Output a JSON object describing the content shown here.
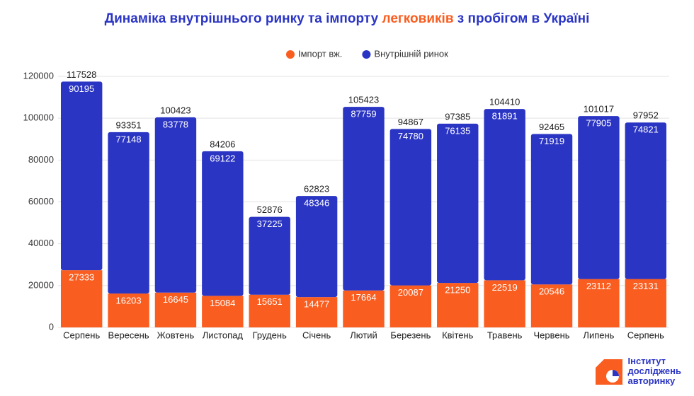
{
  "chart_data": {
    "type": "stacked_bar",
    "title_parts": [
      "Динаміка внутрішнього ринку та імпорту ",
      "легковиків",
      " з пробігом в Україні"
    ],
    "categories": [
      "Серпень",
      "Вересень",
      "Жовтень",
      "Листопад",
      "Грудень",
      "Січень",
      "Лютий",
      "Березень",
      "Квітень",
      "Травень",
      "Червень",
      "Липень",
      "Серпень"
    ],
    "series": [
      {
        "name": "Імпорт вж.",
        "color": "#f95d1f",
        "values": [
          27333,
          16203,
          16645,
          15084,
          15651,
          14477,
          17664,
          20087,
          21250,
          22519,
          20546,
          23112,
          23131
        ]
      },
      {
        "name": "Внутрішній ринок",
        "color": "#2b35c4",
        "values": [
          90195,
          77148,
          83778,
          69122,
          37225,
          48346,
          87759,
          74780,
          76135,
          81891,
          71919,
          77905,
          74821
        ]
      }
    ],
    "totals": [
      117528,
      93351,
      100423,
      84206,
      52876,
      62823,
      105423,
      94867,
      97385,
      104410,
      92465,
      101017,
      97952
    ],
    "ylim": [
      0,
      120000
    ],
    "yticks": [
      0,
      20000,
      40000,
      60000,
      80000,
      100000,
      120000
    ],
    "grid": true,
    "logo": [
      "Інститут",
      "досліджень",
      "авторинку"
    ]
  }
}
